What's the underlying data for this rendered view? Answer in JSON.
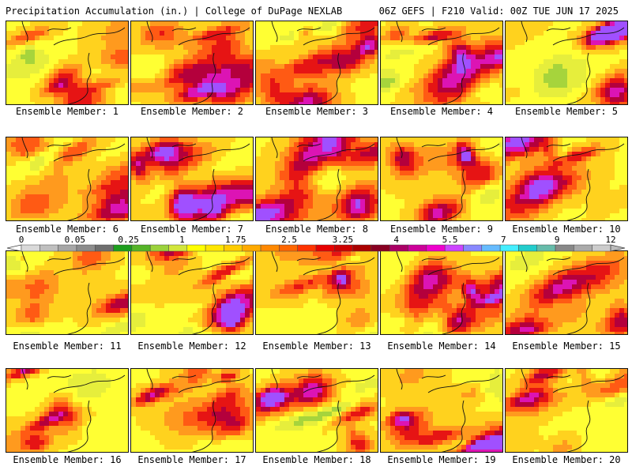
{
  "header": {
    "title": "Precipitation Accumulation (in.) | College of DuPage NEXLAB",
    "run_info": "06Z GEFS | F210 Valid: 00Z TUE JUN 17 2025"
  },
  "colorbar": {
    "labels": [
      "0",
      "0.05",
      "0.25",
      "1",
      "1.75",
      "2.5",
      "3.25",
      "4",
      "5.5",
      "7",
      "9",
      "12"
    ],
    "colors": [
      "#d9d9d9",
      "#bfbfbf",
      "#a6a6a6",
      "#8c8c8c",
      "#6e6e6e",
      "#1e9e1e",
      "#55b428",
      "#9bd23c",
      "#d2e63c",
      "#ffff00",
      "#ffe600",
      "#ffcc00",
      "#ffaa00",
      "#ff8800",
      "#ff6600",
      "#ff3300",
      "#e60000",
      "#cc0000",
      "#aa0000",
      "#880022",
      "#aa0066",
      "#cc0099",
      "#ee00cc",
      "#cc44ff",
      "#8888ff",
      "#66bbff",
      "#44eeff",
      "#22cccc",
      "#66bbaa",
      "#888888",
      "#aaaaaa",
      "#cccccc"
    ]
  },
  "panels": [
    {
      "label": "Ensemble Member: 1"
    },
    {
      "label": "Ensemble Member: 2"
    },
    {
      "label": "Ensemble Member: 3"
    },
    {
      "label": "Ensemble Member: 4"
    },
    {
      "label": "Ensemble Member: 5"
    },
    {
      "label": "Ensemble Member: 6"
    },
    {
      "label": "Ensemble Member: 7"
    },
    {
      "label": "Ensemble Member: 8"
    },
    {
      "label": "Ensemble Member: 9"
    },
    {
      "label": "Ensemble Member: 10"
    },
    {
      "label": "Ensemble Member: 11"
    },
    {
      "label": "Ensemble Member: 12"
    },
    {
      "label": "Ensemble Member: 13"
    },
    {
      "label": "Ensemble Member: 14"
    },
    {
      "label": "Ensemble Member: 15"
    },
    {
      "label": "Ensemble Member: 16"
    },
    {
      "label": "Ensemble Member: 17"
    },
    {
      "label": "Ensemble Member: 18"
    },
    {
      "label": "Ensemble Member: 19"
    },
    {
      "label": "Ensemble Member: 20"
    }
  ]
}
